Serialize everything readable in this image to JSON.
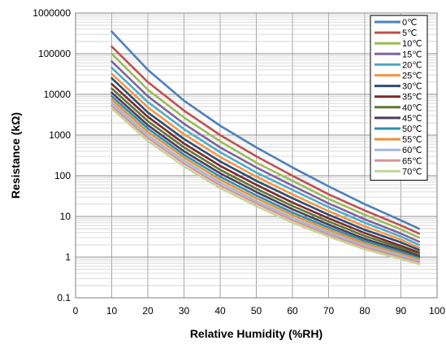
{
  "chart_data": {
    "type": "line",
    "title": "",
    "xlabel": "Relative Humidity (%RH)",
    "ylabel": "Resistance (kΩ)",
    "xlim": [
      0,
      100
    ],
    "ylim": [
      0.1,
      1000000
    ],
    "y_scale": "log",
    "grid": true,
    "legend_position": "top-right",
    "x_ticks": [
      0,
      10,
      20,
      30,
      40,
      50,
      60,
      70,
      80,
      90,
      100
    ],
    "x_tick_labels": [
      "0",
      "10",
      "20",
      "30",
      "40",
      "50",
      "60",
      "70",
      "80",
      "90",
      "100"
    ],
    "y_ticks": [
      0.1,
      1,
      10,
      100,
      1000,
      10000,
      100000,
      1000000
    ],
    "y_tick_labels": [
      "0.1",
      "1",
      "10",
      "100",
      "1000",
      "10000",
      "100000",
      "1000000"
    ],
    "x": [
      10,
      20,
      30,
      40,
      50,
      60,
      70,
      80,
      90,
      95
    ],
    "series": [
      {
        "name": "0℃",
        "color": "#4F81BD",
        "values": [
          350000,
          40000,
          7000,
          1700,
          500,
          160,
          55,
          20,
          8,
          5
        ]
      },
      {
        "name": "5℃",
        "color": "#C0504D",
        "values": [
          150000,
          20000,
          4000,
          1000,
          300,
          100,
          35,
          14,
          6,
          3.8
        ]
      },
      {
        "name": "10℃",
        "color": "#9BBB59",
        "values": [
          100000,
          13000,
          2700,
          700,
          210,
          75,
          27,
          11,
          4.8,
          3
        ]
      },
      {
        "name": "15℃",
        "color": "#8064A2",
        "values": [
          65000,
          9000,
          1900,
          500,
          160,
          57,
          21,
          8.5,
          3.8,
          2.4
        ]
      },
      {
        "name": "20℃",
        "color": "#4BACC6",
        "values": [
          45000,
          6500,
          1400,
          380,
          120,
          45,
          17,
          7,
          3.2,
          2
        ]
      },
      {
        "name": "25℃",
        "color": "#F79646",
        "values": [
          32000,
          4800,
          1050,
          290,
          95,
          35,
          13.5,
          5.7,
          2.7,
          1.7
        ]
      },
      {
        "name": "30℃",
        "color": "#2C4D75",
        "values": [
          25000,
          3600,
          800,
          225,
          75,
          28,
          11,
          4.7,
          2.3,
          1.5
        ]
      },
      {
        "name": "35℃",
        "color": "#772C2A",
        "values": [
          18000,
          2800,
          620,
          175,
          60,
          22,
          9,
          3.9,
          1.9,
          1.3
        ]
      },
      {
        "name": "40℃",
        "color": "#5F7530",
        "values": [
          14000,
          2200,
          500,
          140,
          48,
          18,
          7.5,
          3.3,
          1.7,
          1.15
        ]
      },
      {
        "name": "45℃",
        "color": "#4D3B62",
        "values": [
          11000,
          1750,
          400,
          115,
          40,
          15,
          6.3,
          2.8,
          1.5,
          1.05
        ]
      },
      {
        "name": "50℃",
        "color": "#2E8FA8",
        "values": [
          9000,
          1450,
          330,
          95,
          33,
          12.5,
          5.4,
          2.5,
          1.35,
          0.95
        ]
      },
      {
        "name": "55℃",
        "color": "#E69138",
        "values": [
          7500,
          1200,
          280,
          80,
          28,
          10.8,
          4.7,
          2.2,
          1.2,
          0.88
        ]
      },
      {
        "name": "60℃",
        "color": "#A5B8D8",
        "values": [
          6300,
          1000,
          235,
          68,
          24,
          9.3,
          4.1,
          1.95,
          1.1,
          0.8
        ]
      },
      {
        "name": "65℃",
        "color": "#D99694",
        "values": [
          5300,
          850,
          200,
          58,
          21,
          8.1,
          3.6,
          1.75,
          1,
          0.74
        ]
      },
      {
        "name": "70℃",
        "color": "#C3D69B",
        "values": [
          4500,
          720,
          170,
          50,
          18,
          7,
          3.2,
          1.55,
          0.9,
          0.68
        ]
      }
    ]
  }
}
